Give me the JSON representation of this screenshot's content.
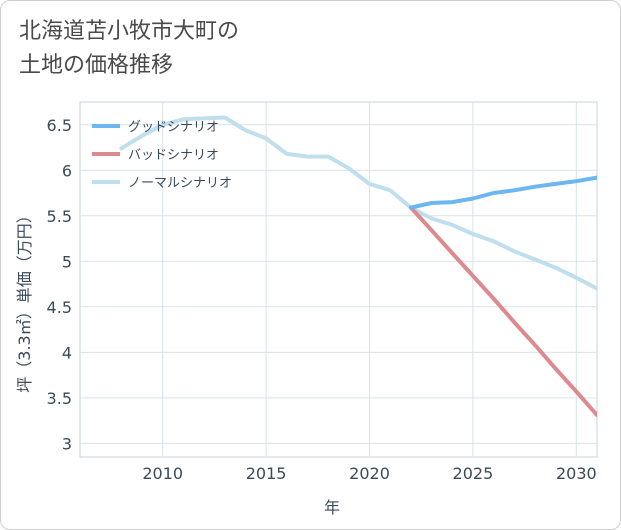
{
  "page": {
    "title_line1": "北海道苫小牧市大町の",
    "title_line2": "土地の価格推移"
  },
  "chart_data": {
    "type": "line",
    "title": "北海道苫小牧市大町の土地の価格推移",
    "xlabel": "年",
    "ylabel": "坪（3.3㎡）単価（万円）",
    "xlim": [
      2006,
      2031
    ],
    "ylim": [
      2.85,
      6.75
    ],
    "xticks": [
      2010,
      2015,
      2020,
      2025,
      2030
    ],
    "yticks": [
      3,
      3.5,
      4,
      4.5,
      5,
      5.5,
      6,
      6.5
    ],
    "ytick_labels": [
      "3",
      "3.5",
      "4",
      "4.5",
      "5",
      "5.5",
      "6",
      "6.5"
    ],
    "grid": true,
    "legend_position": "top-left",
    "series": [
      {
        "name": "グッドシナリオ",
        "color": "#6cb7ef",
        "x": [
          2022,
          2023,
          2024,
          2025,
          2026,
          2027,
          2028,
          2029,
          2030,
          2031
        ],
        "y": [
          5.59,
          5.64,
          5.65,
          5.69,
          5.75,
          5.78,
          5.82,
          5.85,
          5.88,
          5.92
        ]
      },
      {
        "name": "バッドシナリオ",
        "color": "#dc8a8e",
        "x": [
          2022,
          2023,
          2024,
          2025,
          2026,
          2027,
          2028,
          2029,
          2030,
          2031
        ],
        "y": [
          5.59,
          5.34,
          5.09,
          4.84,
          4.59,
          4.33,
          4.08,
          3.82,
          3.57,
          3.31
        ]
      },
      {
        "name": "ノーマルシナリオ",
        "color": "#bfdeee",
        "x": [
          2008,
          2009,
          2010,
          2011,
          2012,
          2013,
          2014,
          2015,
          2016,
          2017,
          2018,
          2019,
          2020,
          2021,
          2022,
          2023,
          2024,
          2025,
          2026,
          2027,
          2028,
          2029,
          2030,
          2031
        ],
        "y": [
          6.24,
          6.38,
          6.5,
          6.56,
          6.57,
          6.58,
          6.44,
          6.35,
          6.18,
          6.15,
          6.15,
          6.02,
          5.85,
          5.78,
          5.59,
          5.47,
          5.4,
          5.3,
          5.22,
          5.11,
          5.02,
          4.93,
          4.82,
          4.7
        ]
      }
    ]
  }
}
